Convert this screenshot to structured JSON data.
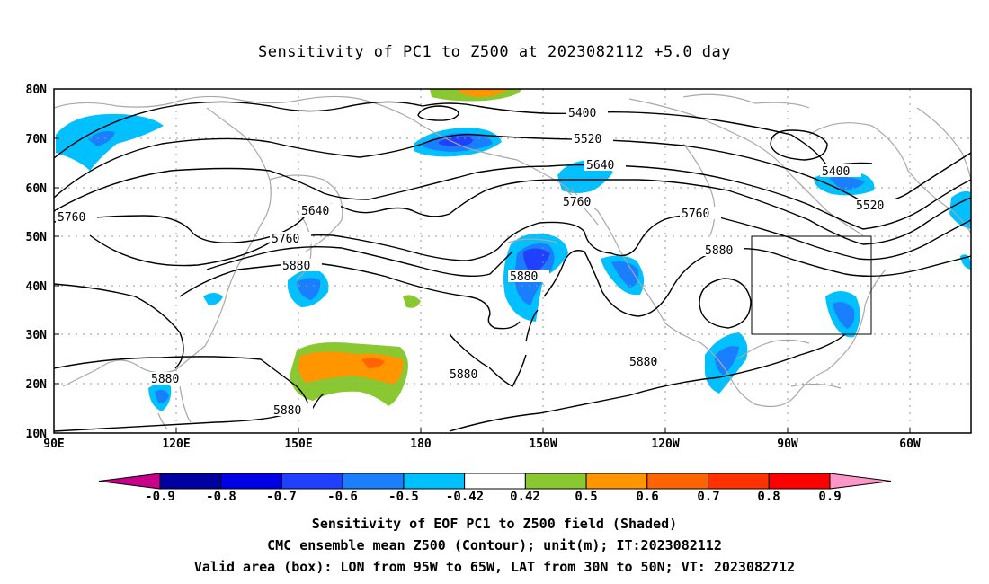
{
  "title": "Sensitivity of PC1 to Z500 at 2023082112 +5.0 day",
  "map": {
    "lat_labels": [
      "80N",
      "70N",
      "60N",
      "50N",
      "40N",
      "30N",
      "20N",
      "10N"
    ],
    "lon_labels": [
      "90E",
      "120E",
      "150E",
      "180",
      "150W",
      "120W",
      "90W",
      "60W"
    ],
    "contour_labels": [
      "5400",
      "5520",
      "5640",
      "5760",
      "5400",
      "5520",
      "5640",
      "5760",
      "5760",
      "5760",
      "5880",
      "5880",
      "5880",
      "5880",
      "5880",
      "5880",
      "5880"
    ],
    "valid_box": {
      "lon_west": "95W",
      "lon_east": "65W",
      "lat_south": "30N",
      "lat_north": "50N"
    }
  },
  "colorbar": {
    "tick_labels": [
      "-0.9",
      "-0.8",
      "-0.7",
      "-0.6",
      "-0.5",
      "-0.42",
      "0.42",
      "0.5",
      "0.6",
      "0.7",
      "0.8",
      "0.9"
    ],
    "colors": [
      "#c8008c",
      "#0000a0",
      "#0000e6",
      "#2040ff",
      "#1a7fff",
      "#00c0ff",
      "#ffffff",
      "#8ac832",
      "#ff9600",
      "#ff6400",
      "#ff3200",
      "#ff0000",
      "#ff96c8"
    ]
  },
  "captions": {
    "line1": "Sensitivity of EOF PC1 to Z500 field (Shaded)",
    "line2": "CMC ensemble mean Z500 (Contour); unit(m); IT:2023082112",
    "line3": "Valid area (box): LON from 95W to 65W, LAT from 30N to 50N; VT: 2023082712"
  }
}
